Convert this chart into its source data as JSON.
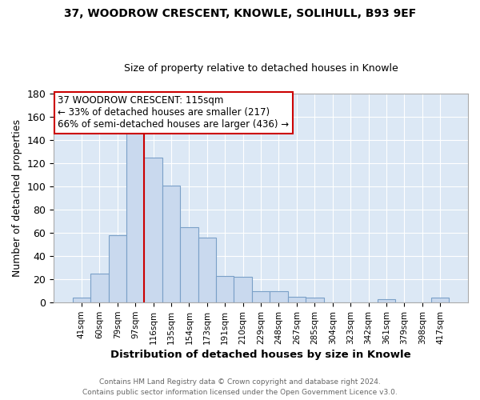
{
  "title1": "37, WOODROW CRESCENT, KNOWLE, SOLIHULL, B93 9EF",
  "title2": "Size of property relative to detached houses in Knowle",
  "xlabel": "Distribution of detached houses by size in Knowle",
  "ylabel": "Number of detached properties",
  "bin_labels": [
    "41sqm",
    "60sqm",
    "79sqm",
    "97sqm",
    "116sqm",
    "135sqm",
    "154sqm",
    "173sqm",
    "191sqm",
    "210sqm",
    "229sqm",
    "248sqm",
    "267sqm",
    "285sqm",
    "304sqm",
    "323sqm",
    "342sqm",
    "361sqm",
    "379sqm",
    "398sqm",
    "417sqm"
  ],
  "bar_heights": [
    4,
    25,
    58,
    149,
    125,
    101,
    65,
    56,
    23,
    22,
    10,
    10,
    5,
    4,
    0,
    0,
    0,
    3,
    0,
    0,
    4
  ],
  "bar_color": "#c9d9ee",
  "bar_edge_color": "#7aa0c8",
  "vline_x_index": 3.5,
  "vline_color": "#cc0000",
  "annotation_title": "37 WOODROW CRESCENT: 115sqm",
  "annotation_line1": "← 33% of detached houses are smaller (217)",
  "annotation_line2": "66% of semi-detached houses are larger (436) →",
  "annotation_box_color": "#ffffff",
  "annotation_box_edge": "#cc0000",
  "ylim": [
    0,
    180
  ],
  "yticks": [
    0,
    20,
    40,
    60,
    80,
    100,
    120,
    140,
    160,
    180
  ],
  "footer1": "Contains HM Land Registry data © Crown copyright and database right 2024.",
  "footer2": "Contains public sector information licensed under the Open Government Licence v3.0.",
  "fig_background_color": "#ffffff",
  "plot_bg_color": "#dce8f5"
}
